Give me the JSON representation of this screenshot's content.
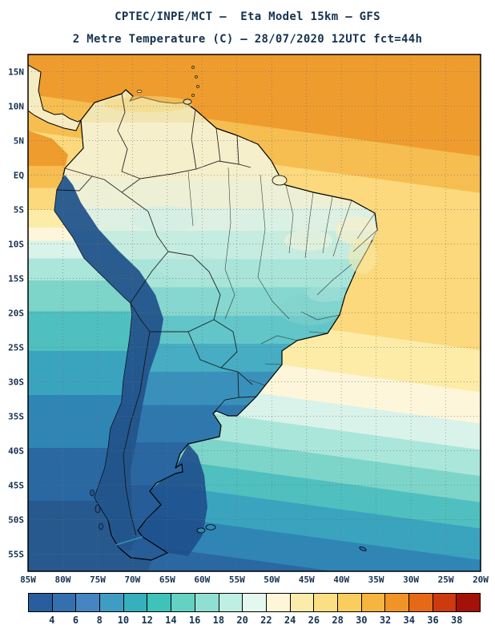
{
  "header": {
    "title_line1": "CPTEC/INPE/MCT –  Eta Model 15km – GFS",
    "title_line2": "2 Metre Temperature (C) – 28/07/2020 12UTC fct=44h"
  },
  "map": {
    "lat_labels": [
      "15N",
      "10N",
      "5N",
      "EQ",
      "5S",
      "10S",
      "15S",
      "20S",
      "25S",
      "30S",
      "35S",
      "40S",
      "45S",
      "50S",
      "55S"
    ],
    "lon_labels": [
      "85W",
      "80W",
      "75W",
      "70W",
      "65W",
      "60W",
      "55W",
      "50W",
      "45W",
      "40W",
      "35W",
      "30W",
      "25W",
      "20W"
    ]
  },
  "colorbar": {
    "tick_labels": [
      "4",
      "6",
      "8",
      "10",
      "12",
      "14",
      "16",
      "18",
      "20",
      "22",
      "24",
      "26",
      "28",
      "30",
      "32",
      "34",
      "36",
      "38"
    ],
    "segment_colors": [
      "#2a5d9e",
      "#3470af",
      "#4685c1",
      "#3f9dc4",
      "#35b0bc",
      "#3fc3b8",
      "#63d2c3",
      "#8fe0d2",
      "#bfeee2",
      "#e4f8ef",
      "#fdf6d8",
      "#fcecab",
      "#fbdf84",
      "#f9ce5f",
      "#f6b53f",
      "#f09427",
      "#e56a17",
      "#cc3a0d",
      "#a31208"
    ]
  },
  "chart_data": {
    "type": "heatmap",
    "title": "CPTEC/INPE/MCT –  Eta Model 15km – GFS",
    "subtitle": "2 Metre Temperature (C) – 28/07/2020 12UTC fct=44h",
    "model": "Eta Model 15km",
    "variable": "2 Metre Temperature",
    "units": "C",
    "valid": "28/07/2020 12UTC",
    "forecast_hour": 44,
    "region": "South America",
    "grid": true,
    "legend_position": "bottom",
    "lat_ticks": [
      "15N",
      "10N",
      "5N",
      "EQ",
      "5S",
      "10S",
      "15S",
      "20S",
      "25S",
      "30S",
      "35S",
      "40S",
      "45S",
      "50S",
      "55S"
    ],
    "lon_ticks": [
      "85W",
      "80W",
      "75W",
      "70W",
      "65W",
      "60W",
      "55W",
      "50W",
      "45W",
      "40W",
      "35W",
      "30W",
      "25W",
      "20W"
    ],
    "colorbar": {
      "units": "C",
      "boundary_values": [
        4,
        6,
        8,
        10,
        12,
        14,
        16,
        18,
        20,
        22,
        24,
        26,
        28,
        30,
        32,
        34,
        36,
        38
      ],
      "segment_colors": [
        "#2a5d9e",
        "#3470af",
        "#4685c1",
        "#3f9dc4",
        "#35b0bc",
        "#3fc3b8",
        "#63d2c3",
        "#8fe0d2",
        "#bfeee2",
        "#e4f8ef",
        "#fdf6d8",
        "#fcecab",
        "#fbdf84",
        "#f9ce5f",
        "#f6b53f",
        "#f09427",
        "#e56a17",
        "#cc3a0d",
        "#a31208"
      ]
    }
  }
}
